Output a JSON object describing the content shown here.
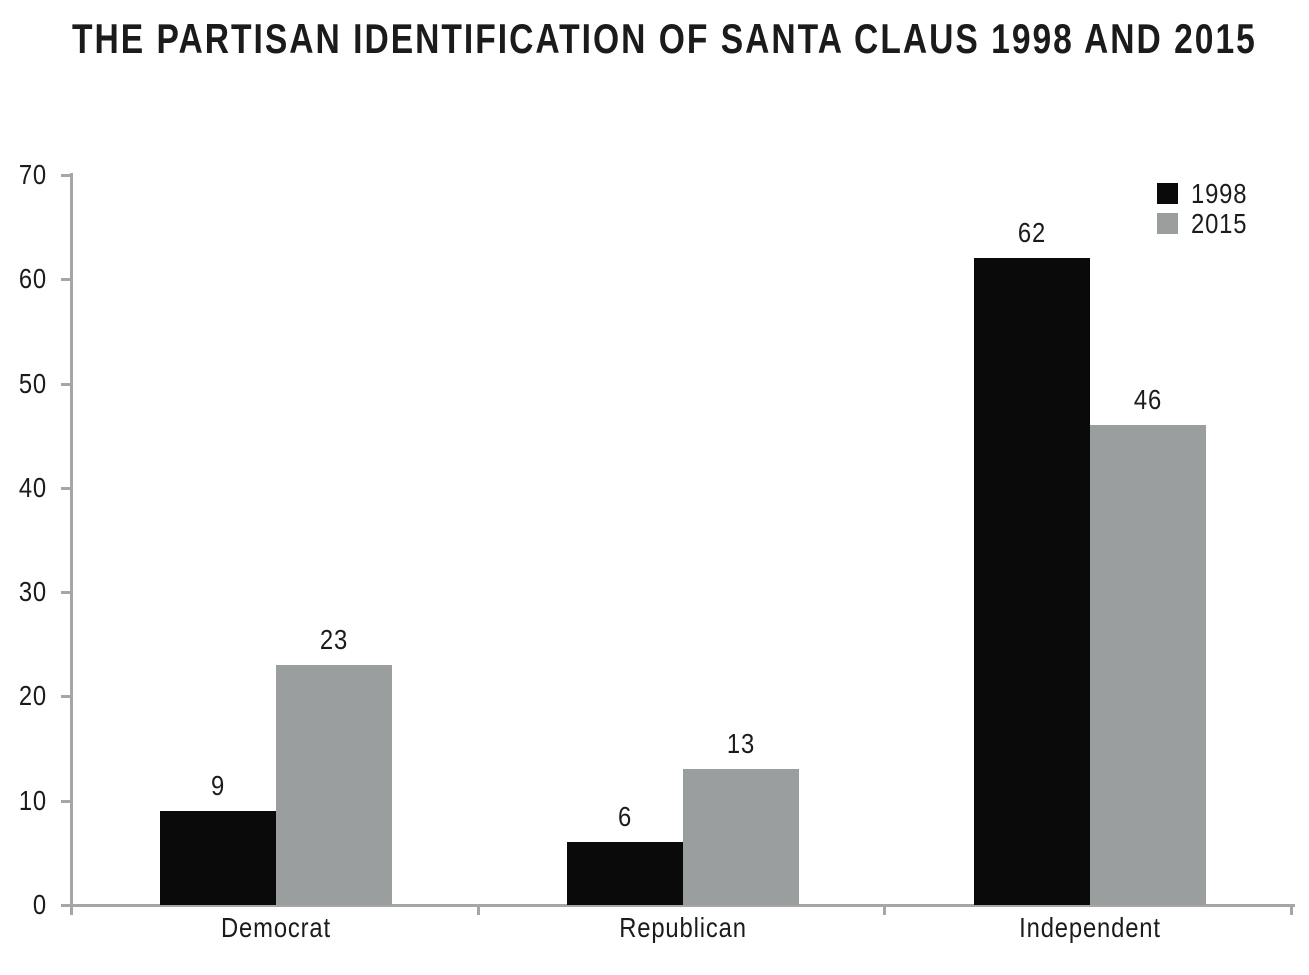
{
  "title": "THE PARTISAN IDENTIFICATION OF SANTA CLAUS 1998 AND 2015",
  "colors": {
    "series_1998": "#0a0a0a",
    "series_2015": "#9a9e9f",
    "axis": "#a6a6a6",
    "text": "#1b1b1b",
    "background": "#ffffff"
  },
  "legend": {
    "position": "top-right",
    "items": [
      {
        "label": "1998",
        "color": "#0a0a0a"
      },
      {
        "label": "2015",
        "color": "#9a9e9f"
      }
    ]
  },
  "chart_data": {
    "type": "bar",
    "title": "THE PARTISAN IDENTIFICATION OF SANTA CLAUS 1998 AND 2015",
    "categories": [
      "Democrat",
      "Republican",
      "Independent"
    ],
    "series": [
      {
        "name": "1998",
        "color": "#0a0a0a",
        "values": [
          9,
          6,
          62
        ]
      },
      {
        "name": "2015",
        "color": "#9a9e9f",
        "values": [
          23,
          13,
          46
        ]
      }
    ],
    "bar_value_labels": [
      [
        9,
        6,
        62
      ],
      [
        23,
        13,
        46
      ]
    ],
    "yticks": [
      0,
      10,
      20,
      30,
      40,
      50,
      60,
      70
    ],
    "ylim": [
      0,
      70
    ],
    "xlabel": "",
    "ylabel": "",
    "grid": false,
    "legend_position": "top-right",
    "axis_color": "#a6a6a6",
    "text_color": "#1b1b1b"
  }
}
